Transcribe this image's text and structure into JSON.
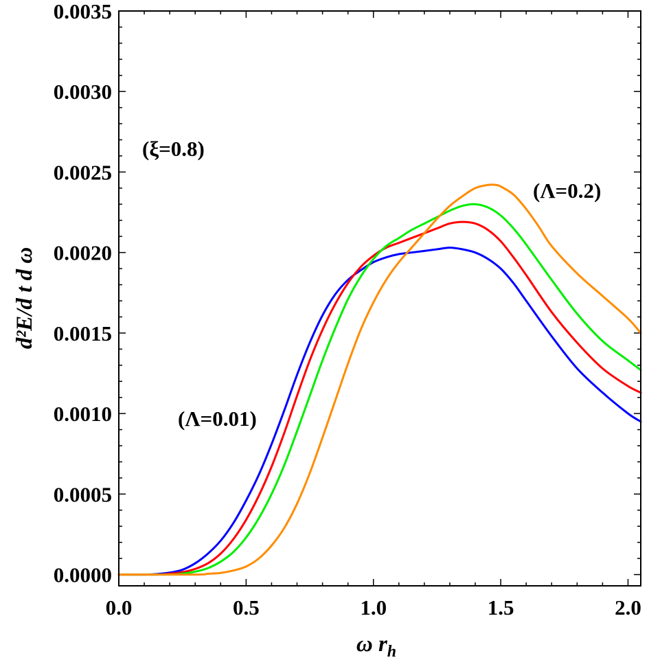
{
  "chart_data": {
    "type": "line",
    "xlabel": "ω r",
    "xlabel_sub": "h",
    "ylabel": "d²E/d t d ω",
    "xlim": [
      0,
      2.05
    ],
    "ylim": [
      -7e-05,
      0.0035
    ],
    "xticks": [
      "0.0",
      "0.5",
      "1.0",
      "1.5",
      "2.0"
    ],
    "yticks": [
      "0.0000",
      "0.0005",
      "0.0010",
      "0.0015",
      "0.0020",
      "0.0025",
      "0.0030",
      "0.0035"
    ],
    "grid": false,
    "annotations": [
      "(ξ=0.8)",
      "(Λ=0.01)",
      "(Λ=0.2)"
    ],
    "series": [
      {
        "color": "#0000ff",
        "x": [
          0,
          0.1,
          0.15,
          0.2,
          0.25,
          0.3,
          0.35,
          0.4,
          0.45,
          0.5,
          0.55,
          0.6,
          0.65,
          0.7,
          0.75,
          0.8,
          0.85,
          0.9,
          0.95,
          1.0,
          1.05,
          1.1,
          1.15,
          1.2,
          1.25,
          1.3,
          1.35,
          1.4,
          1.45,
          1.5,
          1.55,
          1.6,
          1.7,
          1.8,
          1.9,
          2.0,
          2.05
        ],
        "y": [
          0,
          0,
          3e-06,
          1.2e-05,
          3e-05,
          7e-05,
          0.00013,
          0.00021,
          0.00032,
          0.00046,
          0.00062,
          0.00081,
          0.00102,
          0.00124,
          0.00144,
          0.00161,
          0.00174,
          0.00183,
          0.00189,
          0.00194,
          0.00197,
          0.00199,
          0.002,
          0.00201,
          0.00202,
          0.00203,
          0.00202,
          0.002,
          0.00196,
          0.0019,
          0.00181,
          0.0017,
          0.00148,
          0.00128,
          0.00113,
          0.001,
          0.00095
        ]
      },
      {
        "color": "#ff0000",
        "x": [
          0,
          0.15,
          0.2,
          0.25,
          0.3,
          0.35,
          0.4,
          0.45,
          0.5,
          0.55,
          0.6,
          0.65,
          0.7,
          0.75,
          0.8,
          0.85,
          0.9,
          0.95,
          1.0,
          1.05,
          1.1,
          1.15,
          1.2,
          1.25,
          1.3,
          1.35,
          1.4,
          1.45,
          1.5,
          1.55,
          1.6,
          1.7,
          1.8,
          1.9,
          2.0,
          2.05
        ],
        "y": [
          0,
          0,
          5e-06,
          1.5e-05,
          3.5e-05,
          7e-05,
          0.00013,
          0.00022,
          0.00034,
          0.00049,
          0.00067,
          0.00088,
          0.00111,
          0.00133,
          0.00152,
          0.00168,
          0.00181,
          0.00191,
          0.00198,
          0.00203,
          0.00206,
          0.00209,
          0.00212,
          0.00215,
          0.00218,
          0.00219,
          0.00218,
          0.00214,
          0.00207,
          0.00197,
          0.00186,
          0.00163,
          0.00144,
          0.00128,
          0.00117,
          0.00113
        ]
      },
      {
        "color": "#00ee00",
        "x": [
          0,
          0.2,
          0.25,
          0.3,
          0.35,
          0.4,
          0.45,
          0.5,
          0.55,
          0.6,
          0.65,
          0.7,
          0.75,
          0.8,
          0.85,
          0.9,
          0.95,
          1.0,
          1.05,
          1.1,
          1.15,
          1.2,
          1.25,
          1.3,
          1.35,
          1.4,
          1.45,
          1.5,
          1.55,
          1.6,
          1.7,
          1.8,
          1.9,
          2.0,
          2.05
        ],
        "y": [
          0,
          0,
          6e-06,
          1.8e-05,
          4e-05,
          8e-05,
          0.00014,
          0.00023,
          0.00035,
          0.0005,
          0.00068,
          0.00089,
          0.00111,
          0.00133,
          0.00153,
          0.00171,
          0.00185,
          0.00196,
          0.00204,
          0.00209,
          0.00214,
          0.00218,
          0.00222,
          0.00226,
          0.00229,
          0.0023,
          0.00228,
          0.00223,
          0.00215,
          0.00205,
          0.00183,
          0.00162,
          0.00145,
          0.00133,
          0.00127
        ]
      },
      {
        "color": "#ff8c00",
        "x": [
          0,
          0.3,
          0.35,
          0.4,
          0.45,
          0.5,
          0.55,
          0.6,
          0.65,
          0.7,
          0.75,
          0.8,
          0.85,
          0.9,
          0.95,
          1.0,
          1.05,
          1.1,
          1.15,
          1.2,
          1.25,
          1.3,
          1.35,
          1.4,
          1.45,
          1.48,
          1.5,
          1.55,
          1.6,
          1.65,
          1.7,
          1.8,
          1.9,
          2.0,
          2.05
        ],
        "y": [
          0,
          0,
          5e-06,
          1e-05,
          2.5e-05,
          5e-05,
          0.0001,
          0.00018,
          0.00029,
          0.00044,
          0.00063,
          0.00085,
          0.00108,
          0.00131,
          0.00152,
          0.00169,
          0.00183,
          0.00194,
          0.00203,
          0.00212,
          0.00221,
          0.00229,
          0.00235,
          0.0024,
          0.00242,
          0.00242,
          0.00241,
          0.00236,
          0.00227,
          0.00216,
          0.00204,
          0.00187,
          0.00173,
          0.00159,
          0.0015
        ]
      }
    ]
  }
}
